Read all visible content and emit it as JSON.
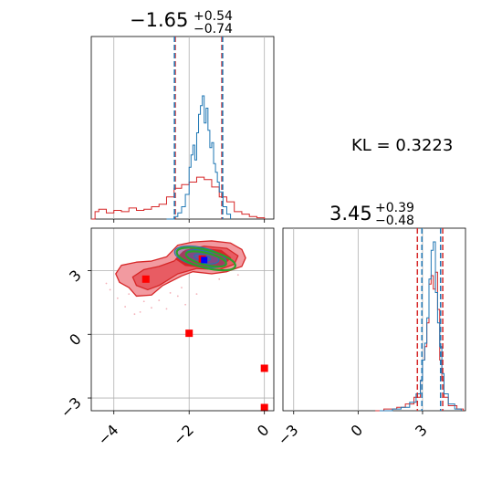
{
  "chart_data": {
    "type": "corner",
    "colors": {
      "reference": "#d62728",
      "posterior": "#1f77b4",
      "contour_green": "#2ca02c",
      "marker_red": "#ff0000",
      "marker_blue": "#0000ff"
    },
    "kl_text": "KL = 0.3223",
    "params": [
      {
        "title_main": "−1.65",
        "title_sup": "+0.54",
        "title_sub": "−0.74",
        "median": -1.65,
        "lower": -2.39,
        "upper": -1.11,
        "ref_lower": -2.37,
        "ref_upper": -1.13,
        "range": [
          -4.6,
          0.25
        ],
        "ticks": [
          -4,
          -2,
          0
        ],
        "tick_labels": [
          "−4",
          "−2",
          "0"
        ]
      },
      {
        "title_main": "3.45",
        "title_sup": "+0.39",
        "title_sub": "−0.48",
        "median": 3.45,
        "lower": 2.97,
        "upper": 3.84,
        "ref_lower": 2.76,
        "ref_upper": 3.94,
        "range": [
          -3.5,
          5.0
        ],
        "ticks": [
          -3,
          0,
          3
        ],
        "tick_labels": [
          "−3",
          "0",
          "3"
        ]
      }
    ],
    "hist1_posterior": [
      {
        "x": -2.6,
        "y": 0.0
      },
      {
        "x": -2.4,
        "y": 0.02
      },
      {
        "x": -2.3,
        "y": 0.05
      },
      {
        "x": -2.2,
        "y": 0.1
      },
      {
        "x": -2.1,
        "y": 0.2
      },
      {
        "x": -2.0,
        "y": 0.42
      },
      {
        "x": -1.95,
        "y": 0.52
      },
      {
        "x": -1.9,
        "y": 0.6
      },
      {
        "x": -1.85,
        "y": 0.48
      },
      {
        "x": -1.8,
        "y": 0.7
      },
      {
        "x": -1.75,
        "y": 0.85
      },
      {
        "x": -1.7,
        "y": 0.92
      },
      {
        "x": -1.65,
        "y": 1.0
      },
      {
        "x": -1.6,
        "y": 0.78
      },
      {
        "x": -1.55,
        "y": 0.9
      },
      {
        "x": -1.5,
        "y": 0.72
      },
      {
        "x": -1.45,
        "y": 0.58
      },
      {
        "x": -1.4,
        "y": 0.62
      },
      {
        "x": -1.35,
        "y": 0.45
      },
      {
        "x": -1.3,
        "y": 0.38
      },
      {
        "x": -1.25,
        "y": 0.3
      },
      {
        "x": -1.2,
        "y": 0.22
      },
      {
        "x": -1.1,
        "y": 0.1
      },
      {
        "x": -1.0,
        "y": 0.04
      },
      {
        "x": -0.9,
        "y": 0.0
      }
    ],
    "hist1_reference": [
      {
        "x": -4.6,
        "y": 0.0
      },
      {
        "x": -4.5,
        "y": 0.06
      },
      {
        "x": -4.4,
        "y": 0.08
      },
      {
        "x": -4.2,
        "y": 0.05
      },
      {
        "x": -4.0,
        "y": 0.07
      },
      {
        "x": -3.8,
        "y": 0.06
      },
      {
        "x": -3.6,
        "y": 0.09
      },
      {
        "x": -3.4,
        "y": 0.07
      },
      {
        "x": -3.2,
        "y": 0.08
      },
      {
        "x": -3.0,
        "y": 0.1
      },
      {
        "x": -2.8,
        "y": 0.12
      },
      {
        "x": -2.6,
        "y": 0.18
      },
      {
        "x": -2.4,
        "y": 0.25
      },
      {
        "x": -2.2,
        "y": 0.28
      },
      {
        "x": -2.0,
        "y": 0.3
      },
      {
        "x": -1.8,
        "y": 0.34
      },
      {
        "x": -1.6,
        "y": 0.32
      },
      {
        "x": -1.4,
        "y": 0.26
      },
      {
        "x": -1.2,
        "y": 0.18
      },
      {
        "x": -1.0,
        "y": 0.14
      },
      {
        "x": -0.8,
        "y": 0.06
      },
      {
        "x": -0.6,
        "y": 0.04
      },
      {
        "x": -0.4,
        "y": 0.02
      },
      {
        "x": -0.2,
        "y": 0.01
      },
      {
        "x": 0.0,
        "y": 0.0
      }
    ],
    "hist2_posterior": [
      {
        "x": 1.0,
        "y": 0.0
      },
      {
        "x": 1.6,
        "y": 0.01
      },
      {
        "x": 2.0,
        "y": 0.02
      },
      {
        "x": 2.4,
        "y": 0.05
      },
      {
        "x": 2.7,
        "y": 0.1
      },
      {
        "x": 2.9,
        "y": 0.18
      },
      {
        "x": 3.0,
        "y": 0.3
      },
      {
        "x": 3.1,
        "y": 0.4
      },
      {
        "x": 3.2,
        "y": 0.55
      },
      {
        "x": 3.3,
        "y": 0.78
      },
      {
        "x": 3.4,
        "y": 0.95
      },
      {
        "x": 3.5,
        "y": 1.0
      },
      {
        "x": 3.6,
        "y": 0.7
      },
      {
        "x": 3.7,
        "y": 0.52
      },
      {
        "x": 3.8,
        "y": 0.38
      },
      {
        "x": 3.9,
        "y": 0.22
      },
      {
        "x": 4.0,
        "y": 0.1
      },
      {
        "x": 4.2,
        "y": 0.04
      },
      {
        "x": 4.5,
        "y": 0.01
      },
      {
        "x": 4.8,
        "y": 0.0
      }
    ],
    "hist2_reference": [
      {
        "x": 0.8,
        "y": 0.0
      },
      {
        "x": 1.2,
        "y": 0.01
      },
      {
        "x": 1.8,
        "y": 0.02
      },
      {
        "x": 2.2,
        "y": 0.04
      },
      {
        "x": 2.6,
        "y": 0.08
      },
      {
        "x": 2.9,
        "y": 0.18
      },
      {
        "x": 3.0,
        "y": 0.3
      },
      {
        "x": 3.1,
        "y": 0.38
      },
      {
        "x": 3.2,
        "y": 0.52
      },
      {
        "x": 3.3,
        "y": 0.75
      },
      {
        "x": 3.4,
        "y": 0.8
      },
      {
        "x": 3.5,
        "y": 0.72
      },
      {
        "x": 3.6,
        "y": 0.82
      },
      {
        "x": 3.7,
        "y": 0.6
      },
      {
        "x": 3.8,
        "y": 0.3
      },
      {
        "x": 3.9,
        "y": 0.18
      },
      {
        "x": 4.0,
        "y": 0.08
      },
      {
        "x": 4.2,
        "y": 0.03
      },
      {
        "x": 4.6,
        "y": 0.01
      },
      {
        "x": 4.9,
        "y": 0.0
      }
    ],
    "red_outer_contour": [
      [
        -3.95,
        2.85
      ],
      [
        -3.8,
        3.25
      ],
      [
        -3.4,
        3.4
      ],
      [
        -3.0,
        3.45
      ],
      [
        -2.6,
        3.65
      ],
      [
        -2.3,
        4.2
      ],
      [
        -1.9,
        4.35
      ],
      [
        -1.4,
        4.4
      ],
      [
        -0.9,
        4.3
      ],
      [
        -0.6,
        4.0
      ],
      [
        -0.5,
        3.6
      ],
      [
        -0.6,
        3.2
      ],
      [
        -1.0,
        2.95
      ],
      [
        -1.4,
        2.85
      ],
      [
        -1.9,
        2.95
      ],
      [
        -2.2,
        2.75
      ],
      [
        -2.7,
        2.3
      ],
      [
        -3.0,
        1.85
      ],
      [
        -3.4,
        1.8
      ],
      [
        -3.6,
        2.2
      ],
      [
        -3.85,
        2.45
      ]
    ],
    "red_mid_contour": [
      [
        -3.5,
        2.7
      ],
      [
        -3.2,
        3.05
      ],
      [
        -2.8,
        3.2
      ],
      [
        -2.4,
        3.45
      ],
      [
        -2.1,
        3.95
      ],
      [
        -1.6,
        4.15
      ],
      [
        -1.0,
        4.05
      ],
      [
        -0.7,
        3.7
      ],
      [
        -0.8,
        3.3
      ],
      [
        -1.2,
        3.05
      ],
      [
        -1.8,
        3.1
      ],
      [
        -2.3,
        2.85
      ],
      [
        -2.8,
        2.3
      ],
      [
        -3.1,
        2.1
      ],
      [
        -3.4,
        2.3
      ]
    ],
    "red_core_contour": [
      [
        -2.35,
        3.55
      ],
      [
        -2.15,
        3.9
      ],
      [
        -1.7,
        4.05
      ],
      [
        -1.15,
        3.95
      ],
      [
        -0.9,
        3.6
      ],
      [
        -1.1,
        3.25
      ],
      [
        -1.6,
        3.15
      ],
      [
        -2.1,
        3.25
      ]
    ],
    "scatter_points": [
      [
        -4.1,
        2.1
      ],
      [
        -3.9,
        1.7
      ],
      [
        -3.7,
        1.3
      ],
      [
        -3.3,
        1.05
      ],
      [
        -3.0,
        1.25
      ],
      [
        -2.8,
        1.6
      ],
      [
        -2.5,
        1.95
      ],
      [
        -2.3,
        1.8
      ],
      [
        -3.6,
        1.9
      ],
      [
        -3.2,
        1.55
      ],
      [
        -2.1,
        1.4
      ],
      [
        -1.8,
        1.9
      ],
      [
        -4.2,
        2.4
      ],
      [
        -2.6,
        1.2
      ],
      [
        -3.45,
        0.95
      ],
      [
        -1.2,
        2.6
      ],
      [
        -0.7,
        2.8
      ],
      [
        -2.9,
        2.05
      ],
      [
        -3.8,
        2.6
      ],
      [
        -2.2,
        2.2
      ]
    ],
    "blue_contours": [
      {
        "cx": -1.7,
        "cy": 3.65,
        "rx": 0.7,
        "ry": 0.45
      },
      {
        "cx": -1.65,
        "cy": 3.65,
        "rx": 0.45,
        "ry": 0.3
      },
      {
        "cx": -1.65,
        "cy": 3.62,
        "rx": 0.22,
        "ry": 0.15
      }
    ],
    "green_contours": [
      {
        "cx": -1.55,
        "cy": 3.55,
        "rx": 0.8,
        "ry": 0.42
      },
      {
        "cx": -1.55,
        "cy": 3.55,
        "rx": 0.55,
        "ry": 0.28
      }
    ],
    "red_markers": [
      [
        -3.15,
        2.6
      ],
      [
        -2.0,
        0.05
      ],
      [
        -1.65,
        3.55
      ],
      [
        0.0,
        -1.6
      ],
      [
        0.0,
        -3.45
      ]
    ],
    "blue_marker": [
      -1.6,
      3.5
    ]
  }
}
